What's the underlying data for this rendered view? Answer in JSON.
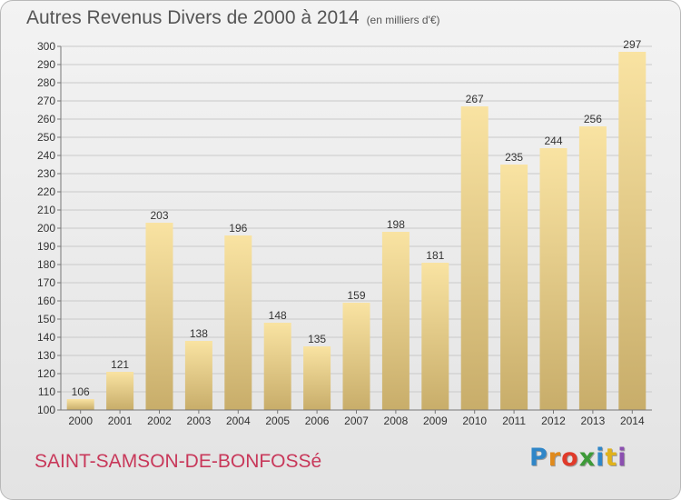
{
  "title": "Autres Revenus Divers de 2000 à 2014",
  "unit": "(en milliers d'€)",
  "commune": "SAINT-SAMSON-DE-BONFOSSé",
  "logo": {
    "letters": [
      "P",
      "r",
      "o",
      "x",
      "i",
      "t",
      "i"
    ],
    "colors": [
      "#2f86c8",
      "#e08a1c",
      "#e03a2a",
      "#3d9a38",
      "#2f86c8",
      "#e0b21c",
      "#8b4fb0"
    ]
  },
  "colors": {
    "bar_light": "#f9e3a2",
    "bar_dark": "#c8ad6a",
    "grid": "#c9c9c9",
    "text": "#333333"
  },
  "chart_data": {
    "type": "bar",
    "categories": [
      "2000",
      "2001",
      "2002",
      "2003",
      "2004",
      "2005",
      "2006",
      "2007",
      "2008",
      "2009",
      "2010",
      "2011",
      "2012",
      "2013",
      "2014"
    ],
    "values": [
      106,
      121,
      203,
      138,
      196,
      148,
      135,
      159,
      198,
      181,
      267,
      235,
      244,
      256,
      297
    ],
    "ylim": [
      100,
      300
    ],
    "yticks": [
      100,
      110,
      120,
      130,
      140,
      150,
      160,
      170,
      180,
      190,
      200,
      210,
      220,
      230,
      240,
      250,
      260,
      270,
      280,
      290,
      300
    ],
    "grid": true,
    "data_labels": true
  }
}
